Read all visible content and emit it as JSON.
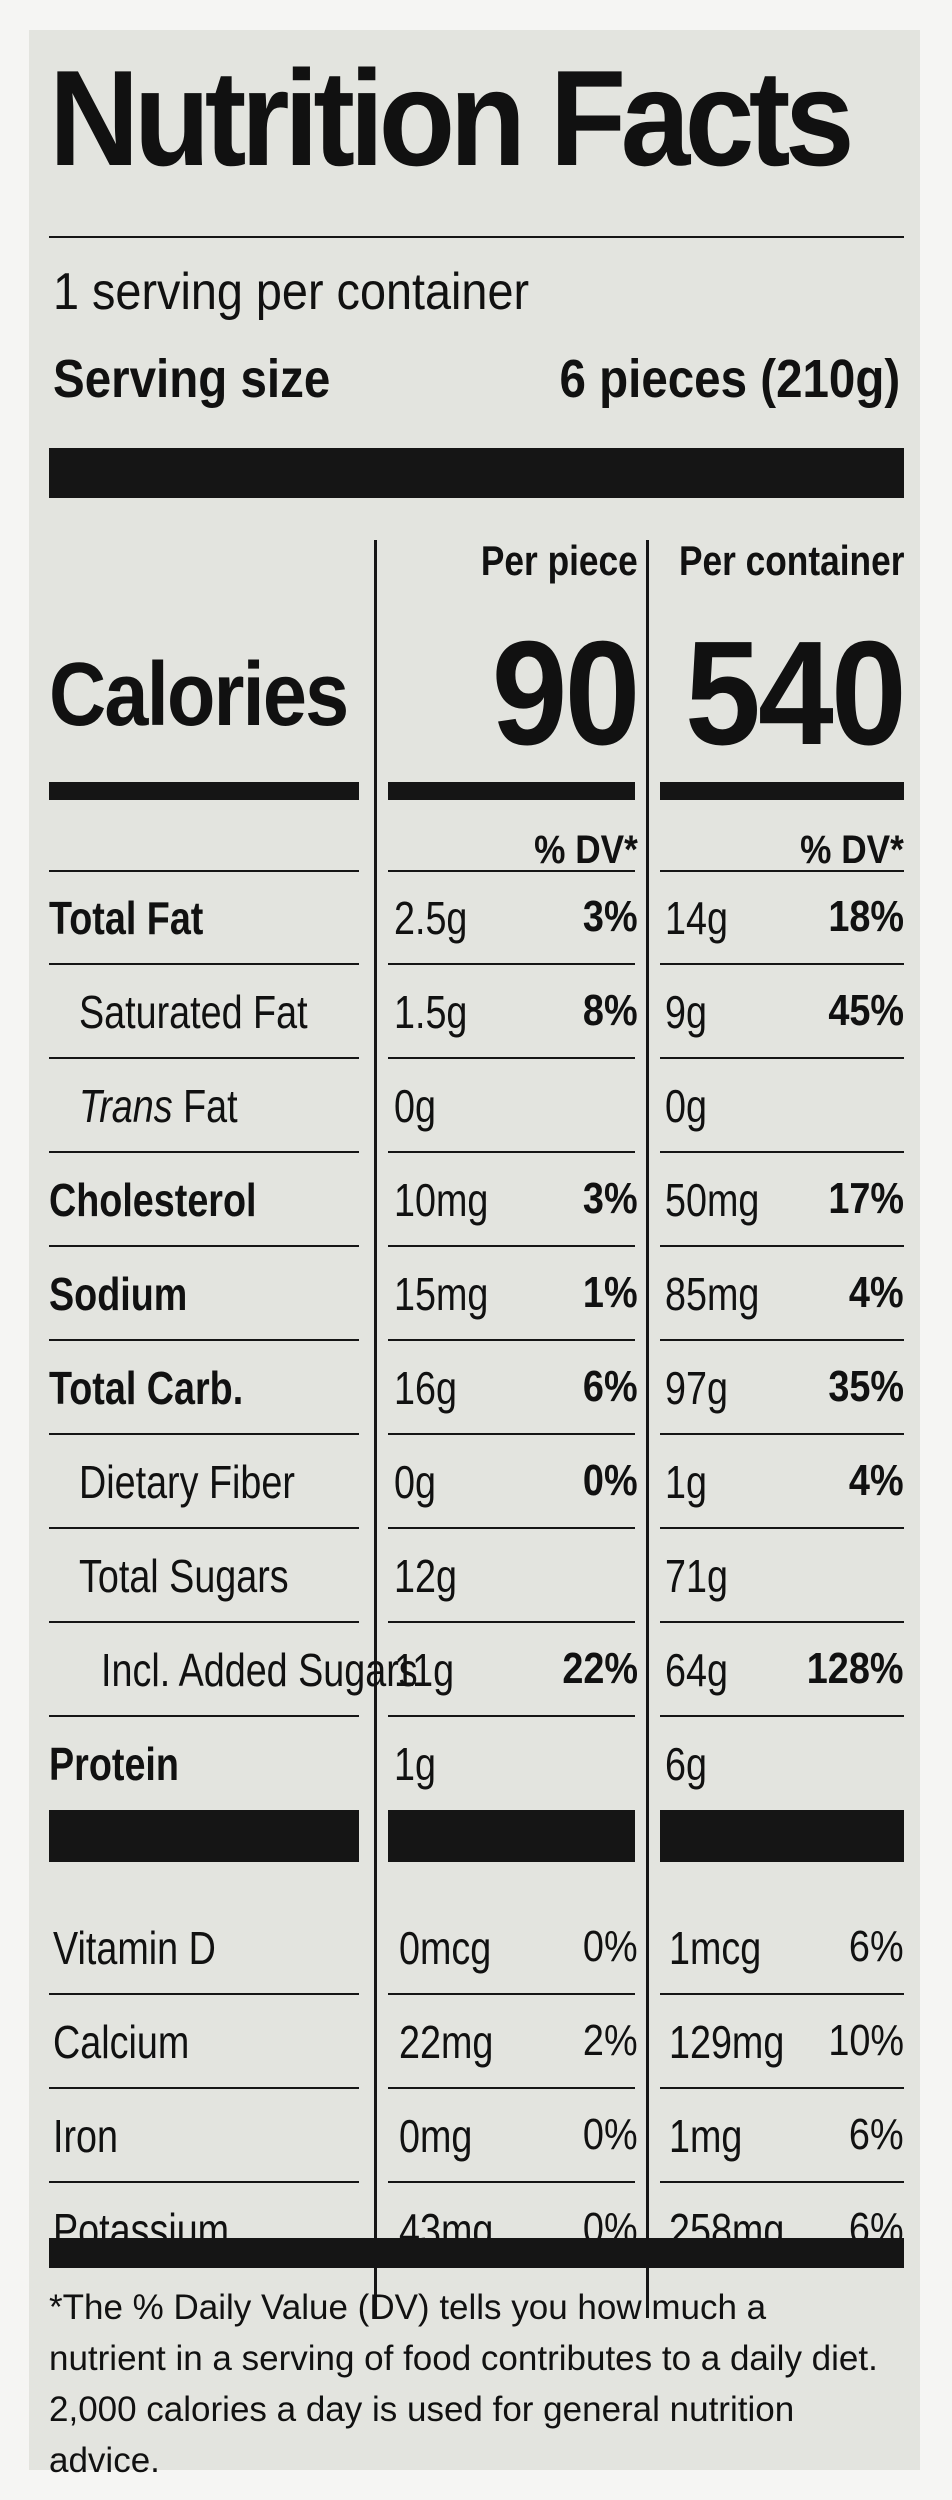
{
  "header": {
    "title": "Nutrition Facts",
    "servings_per_container": "1 serving per container",
    "serving_size_label": "Serving size",
    "serving_size_value": "6 pieces (210g)"
  },
  "calories": {
    "label": "Calories",
    "col1_header": "Per piece",
    "col2_header": "Per container",
    "per_piece": "90",
    "per_container": "540",
    "dv_header": "% DV*"
  },
  "nutrients": [
    {
      "name": "Total Fat",
      "bold": true,
      "italic_prefix": "",
      "amt1": "2.5g",
      "dv1": "3%",
      "amt2": "14g",
      "dv2": "18%"
    },
    {
      "name": "Saturated Fat",
      "bold": false,
      "italic_prefix": "",
      "amt1": "1.5g",
      "dv1": "8%",
      "amt2": "9g",
      "dv2": "45%"
    },
    {
      "name": "Fat",
      "bold": false,
      "italic_prefix": "Trans",
      "amt1": "0g",
      "dv1": "",
      "amt2": "0g",
      "dv2": ""
    },
    {
      "name": "Cholesterol",
      "bold": true,
      "italic_prefix": "",
      "amt1": "10mg",
      "dv1": "3%",
      "amt2": "50mg",
      "dv2": "17%"
    },
    {
      "name": "Sodium",
      "bold": true,
      "italic_prefix": "",
      "amt1": "15mg",
      "dv1": "1%",
      "amt2": "85mg",
      "dv2": "4%"
    },
    {
      "name": "Total Carb.",
      "bold": true,
      "italic_prefix": "",
      "amt1": "16g",
      "dv1": "6%",
      "amt2": "97g",
      "dv2": "35%"
    },
    {
      "name": "Dietary Fiber",
      "bold": false,
      "italic_prefix": "",
      "amt1": "0g",
      "dv1": "0%",
      "amt2": "1g",
      "dv2": "4%"
    },
    {
      "name": "Total Sugars",
      "bold": false,
      "italic_prefix": "",
      "amt1": "12g",
      "dv1": "",
      "amt2": "71g",
      "dv2": ""
    },
    {
      "name": "Incl. Added Sugars",
      "bold": false,
      "italic_prefix": "",
      "amt1": "11g",
      "dv1": "22%",
      "amt2": "64g",
      "dv2": "128%"
    },
    {
      "name": "Protein",
      "bold": true,
      "italic_prefix": "",
      "amt1": "1g",
      "dv1": "",
      "amt2": "6g",
      "dv2": ""
    }
  ],
  "vitamins": [
    {
      "name": "Vitamin D",
      "amt1": "0mcg",
      "dv1": "0%",
      "amt2": "1mcg",
      "dv2": "6%"
    },
    {
      "name": "Calcium",
      "amt1": "22mg",
      "dv1": "2%",
      "amt2": "129mg",
      "dv2": "10%"
    },
    {
      "name": "Iron",
      "amt1": "0mg",
      "dv1": "0%",
      "amt2": "1mg",
      "dv2": "6%"
    },
    {
      "name": "Potassium",
      "amt1": "43mg",
      "dv1": "0%",
      "amt2": "258mg",
      "dv2": "6%"
    }
  ],
  "footnote": "*The % Daily Value (DV) tells you how much a nutrient in a serving of food contributes to a daily diet. 2,000 calories a day is used for general nutrition advice."
}
